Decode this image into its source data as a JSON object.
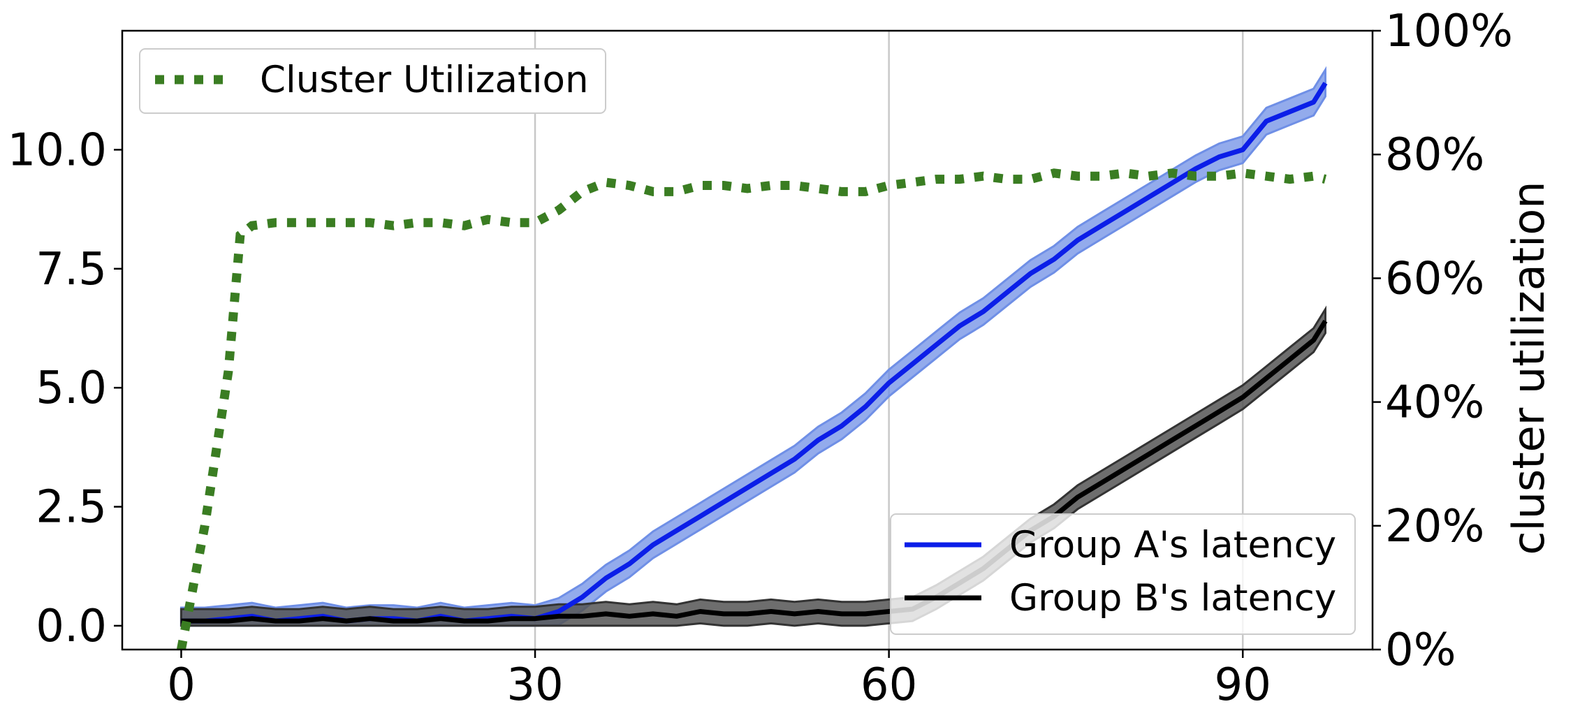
{
  "chart_data": {
    "type": "line",
    "x_ticks": [
      0,
      30,
      60,
      90
    ],
    "x_tick_labels": [
      "0",
      "30",
      "60",
      "90"
    ],
    "xlim": [
      -5,
      101
    ],
    "y_left": {
      "ylim": [
        -0.5,
        12.5
      ],
      "ticks": [
        0,
        2.5,
        5,
        7.5,
        10
      ],
      "tick_labels": [
        "0.0",
        "2.5",
        "5.0",
        "7.5",
        "10.0"
      ],
      "label": ""
    },
    "y_right": {
      "ylim": [
        0,
        100
      ],
      "ticks": [
        0,
        20,
        40,
        60,
        80,
        100
      ],
      "tick_labels": [
        "0%",
        "20%",
        "40%",
        "60%",
        "80%",
        "100%"
      ],
      "label": "cluster utilization"
    },
    "vertical_gridlines_at": [
      30,
      60,
      90
    ],
    "legend_left": {
      "placement": "top-left",
      "entries": [
        "Cluster Utilization"
      ]
    },
    "legend_right": {
      "placement": "bottom-right",
      "entries": [
        "Group A's latency",
        "Group B's latency"
      ]
    },
    "colors": {
      "cluster_utilization": "#3a7d22",
      "group_a_line": "#0b1ee8",
      "group_a_band": "#6f8fe6",
      "group_b_line": "#000000",
      "group_b_band": "#555555",
      "gridline": "#c8c8c8"
    },
    "series": [
      {
        "name": "Cluster Utilization",
        "axis": "right",
        "style": "dotted",
        "x": [
          0,
          2,
          4,
          5,
          6,
          8,
          10,
          12,
          14,
          16,
          18,
          20,
          22,
          24,
          26,
          28,
          30,
          32,
          34,
          36,
          38,
          40,
          42,
          44,
          46,
          48,
          50,
          52,
          54,
          56,
          58,
          60,
          62,
          64,
          66,
          68,
          70,
          72,
          74,
          76,
          78,
          80,
          82,
          84,
          86,
          88,
          90,
          92,
          94,
          96,
          97
        ],
        "values": [
          0,
          20,
          45,
          67,
          68.5,
          69,
          69,
          69,
          69,
          69,
          68.5,
          69,
          69,
          68.5,
          69.5,
          69,
          69,
          71,
          74,
          75.5,
          75,
          74,
          74,
          75,
          75,
          74.5,
          75,
          75,
          74.5,
          74,
          74,
          75,
          75.5,
          76,
          76,
          76.5,
          76,
          76,
          77,
          76.5,
          76.5,
          77,
          76.5,
          77,
          76.5,
          76.5,
          77,
          76.5,
          76,
          76.5,
          76
        ]
      },
      {
        "name": "Group A's latency",
        "axis": "left",
        "x": [
          0,
          2,
          4,
          6,
          8,
          10,
          12,
          14,
          16,
          18,
          20,
          22,
          24,
          26,
          28,
          30,
          32,
          34,
          36,
          38,
          40,
          42,
          44,
          46,
          48,
          50,
          52,
          54,
          56,
          58,
          60,
          62,
          64,
          66,
          68,
          70,
          72,
          74,
          76,
          78,
          80,
          82,
          84,
          86,
          88,
          90,
          92,
          94,
          96,
          97
        ],
        "values": [
          0.1,
          0.1,
          0.15,
          0.2,
          0.1,
          0.15,
          0.2,
          0.1,
          0.15,
          0.15,
          0.1,
          0.2,
          0.1,
          0.15,
          0.2,
          0.15,
          0.3,
          0.6,
          1.0,
          1.3,
          1.7,
          2.0,
          2.3,
          2.6,
          2.9,
          3.2,
          3.5,
          3.9,
          4.2,
          4.6,
          5.1,
          5.5,
          5.9,
          6.3,
          6.6,
          7.0,
          7.4,
          7.7,
          8.1,
          8.4,
          8.7,
          9.0,
          9.3,
          9.6,
          9.85,
          10.0,
          10.6,
          10.8,
          11.0,
          11.4
        ],
        "band": 0.28
      },
      {
        "name": "Group B's latency",
        "axis": "left",
        "x": [
          0,
          2,
          4,
          6,
          8,
          10,
          12,
          14,
          16,
          18,
          20,
          22,
          24,
          26,
          28,
          30,
          32,
          34,
          36,
          38,
          40,
          42,
          44,
          46,
          48,
          50,
          52,
          54,
          56,
          58,
          60,
          62,
          64,
          66,
          68,
          70,
          72,
          74,
          76,
          78,
          80,
          82,
          84,
          86,
          88,
          90,
          92,
          94,
          96,
          97
        ],
        "values": [
          0.1,
          0.1,
          0.1,
          0.15,
          0.1,
          0.1,
          0.15,
          0.1,
          0.15,
          0.1,
          0.1,
          0.15,
          0.1,
          0.1,
          0.15,
          0.15,
          0.2,
          0.2,
          0.25,
          0.2,
          0.25,
          0.2,
          0.3,
          0.25,
          0.25,
          0.3,
          0.25,
          0.3,
          0.25,
          0.25,
          0.3,
          0.35,
          0.6,
          0.9,
          1.2,
          1.6,
          2.0,
          2.3,
          2.7,
          3.0,
          3.3,
          3.6,
          3.9,
          4.2,
          4.5,
          4.8,
          5.2,
          5.6,
          6.0,
          6.4
        ],
        "band": 0.25
      }
    ]
  }
}
